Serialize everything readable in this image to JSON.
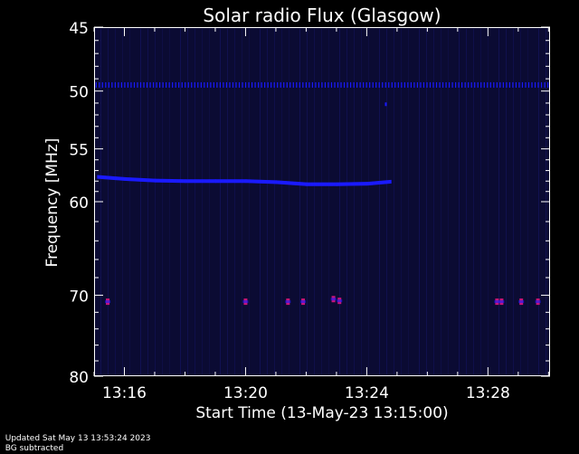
{
  "chart_data": {
    "type": "heatmap",
    "title": "Solar radio Flux (Glasgow)",
    "xlabel": "Start Time (13-May-23 13:15:00)",
    "ylabel": "Frequency [MHz]",
    "x_start_minutes": 15.0,
    "x_end_minutes": 30.05,
    "xlim": [
      "13:15:00",
      "13:30:03"
    ],
    "ylim": [
      45,
      80
    ],
    "x_ticks": [
      "13:16",
      "13:20",
      "13:24",
      "13:28"
    ],
    "x_tick_minutes": [
      16,
      20,
      24,
      28
    ],
    "y_ticks": [
      45,
      50,
      55,
      60,
      70,
      80
    ],
    "y_scale": "log",
    "grid": false,
    "colors": {
      "background": "#000000",
      "panel": "#0b0b33",
      "emission": "#1a1aff",
      "interference": "#c8147a"
    },
    "emission_bands": [
      {
        "frequency_mhz": 49.5,
        "from_minute": 15.0,
        "to_minute": 30.0,
        "style": "dotted"
      },
      {
        "frequency_mhz": 51.1,
        "from_minute": 24.6,
        "to_minute": 24.7,
        "style": "point"
      }
    ],
    "drifting_band": {
      "points": [
        {
          "minute": 15.1,
          "frequency_mhz": 57.6
        },
        {
          "minute": 16.0,
          "frequency_mhz": 57.8
        },
        {
          "minute": 17.0,
          "frequency_mhz": 57.95
        },
        {
          "minute": 18.0,
          "frequency_mhz": 58.0
        },
        {
          "minute": 19.0,
          "frequency_mhz": 58.0
        },
        {
          "minute": 20.0,
          "frequency_mhz": 58.0
        },
        {
          "minute": 21.0,
          "frequency_mhz": 58.1
        },
        {
          "minute": 22.0,
          "frequency_mhz": 58.3
        },
        {
          "minute": 23.0,
          "frequency_mhz": 58.3
        },
        {
          "minute": 24.0,
          "frequency_mhz": 58.25
        },
        {
          "minute": 24.8,
          "frequency_mhz": 58.05
        }
      ]
    },
    "interference_spots": [
      {
        "minute": 15.45,
        "frequency_mhz": 70.7
      },
      {
        "minute": 20.0,
        "frequency_mhz": 70.7
      },
      {
        "minute": 21.4,
        "frequency_mhz": 70.7
      },
      {
        "minute": 21.9,
        "frequency_mhz": 70.7
      },
      {
        "minute": 22.9,
        "frequency_mhz": 70.4
      },
      {
        "minute": 23.1,
        "frequency_mhz": 70.6
      },
      {
        "minute": 28.3,
        "frequency_mhz": 70.7
      },
      {
        "minute": 28.45,
        "frequency_mhz": 70.7
      },
      {
        "minute": 29.1,
        "frequency_mhz": 70.7
      },
      {
        "minute": 29.65,
        "frequency_mhz": 70.7
      }
    ]
  },
  "footer": {
    "updated": "Updated Sat May 13 13:53:24 2023",
    "note": "BG subtracted"
  }
}
